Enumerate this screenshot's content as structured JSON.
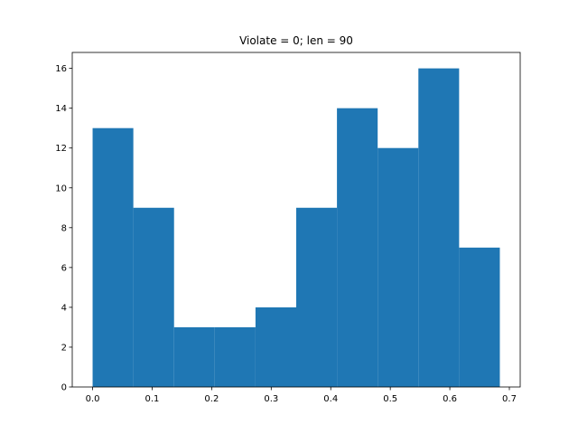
{
  "chart_data": {
    "type": "bar",
    "subtype": "histogram",
    "title": "Violate = 0; len = 90",
    "xlabel": "",
    "ylabel": "",
    "color": "#1f77b4",
    "bin_edges": [
      0.0,
      0.0684,
      0.1368,
      0.2052,
      0.2736,
      0.342,
      0.4104,
      0.4788,
      0.5472,
      0.6156,
      0.684
    ],
    "counts": [
      13,
      9,
      3,
      3,
      4,
      9,
      14,
      12,
      16,
      7
    ],
    "xlim": [
      -0.0342,
      0.7182
    ],
    "ylim": [
      0,
      16.8
    ],
    "xticks": [
      0.0,
      0.1,
      0.2,
      0.3,
      0.4,
      0.5,
      0.6,
      0.7
    ],
    "xtick_labels": [
      "0.0",
      "0.1",
      "0.2",
      "0.3",
      "0.4",
      "0.5",
      "0.6",
      "0.7"
    ],
    "yticks": [
      0,
      2,
      4,
      6,
      8,
      10,
      12,
      14,
      16
    ],
    "ytick_labels": [
      "0",
      "2",
      "4",
      "6",
      "8",
      "10",
      "12",
      "14",
      "16"
    ],
    "grid": false
  }
}
